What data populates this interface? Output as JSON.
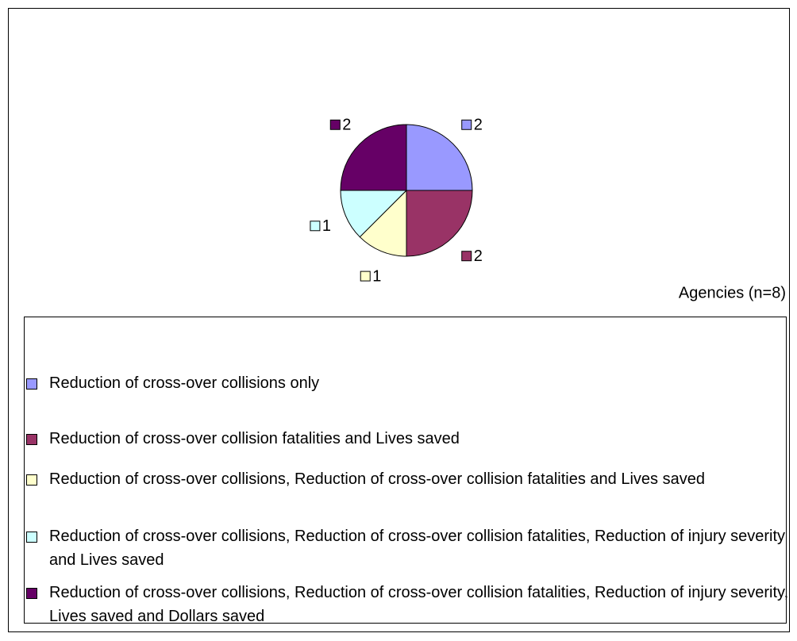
{
  "chart_data": {
    "type": "pie",
    "categories": [
      "Reduction of cross-over collisions only",
      "Reduction of cross-over collision fatalities and Lives saved",
      "Reduction of cross-over collisions, Reduction of cross-over collision fatalities and Lives saved",
      "Reduction of cross-over collisions, Reduction of cross-over collision fatalities, Reduction of injury severity and Lives saved",
      "Reduction of cross-over collisions, Reduction of cross-over collision fatalities, Reduction of injury severity, Lives saved and Dollars saved"
    ],
    "values": [
      2,
      2,
      1,
      1,
      2
    ],
    "colors": [
      "#9999ff",
      "#993366",
      "#ffffcc",
      "#ccffff",
      "#660066"
    ],
    "annotation": "Agencies (n=8)",
    "legend": "bottom"
  }
}
